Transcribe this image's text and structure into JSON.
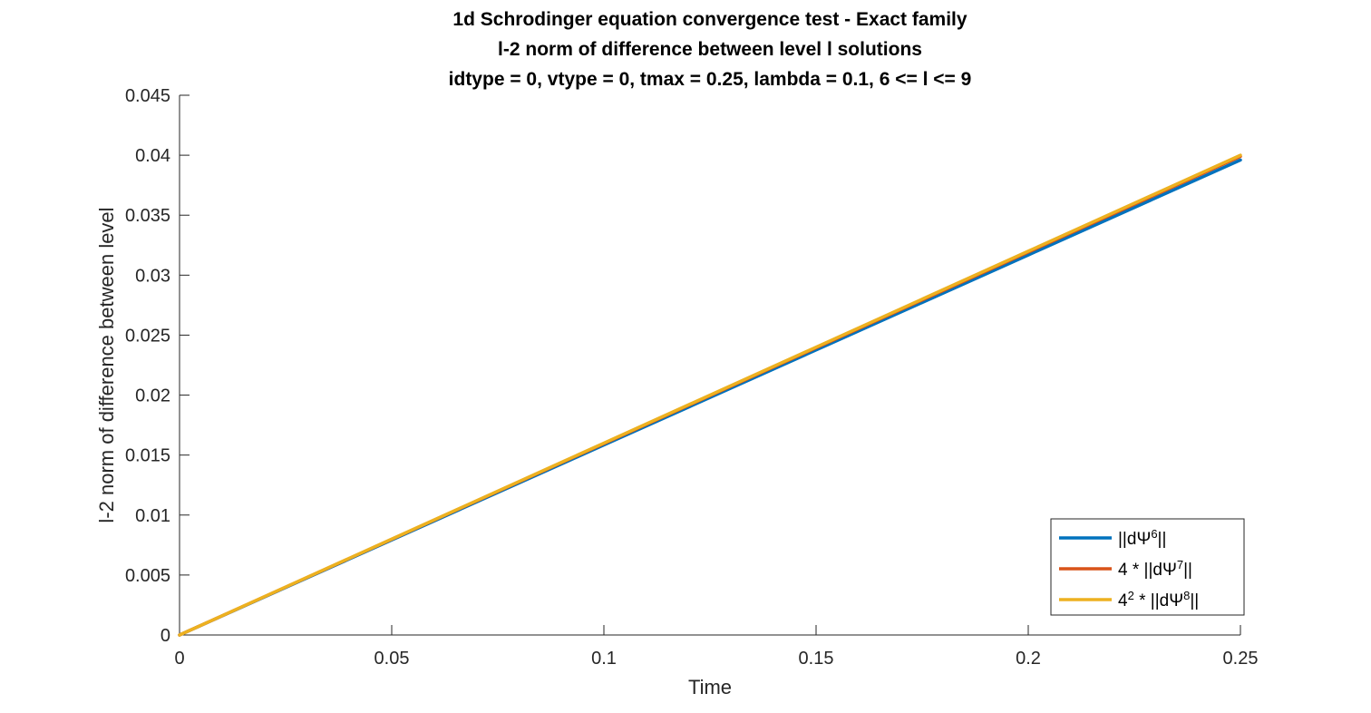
{
  "chart_data": {
    "type": "line",
    "title": [
      "1d Schrodinger equation convergence test - Exact family",
      "l-2 norm of difference between level l solutions",
      "idtype = 0, vtype = 0, tmax = 0.25, lambda = 0.1, 6 <= l <= 9"
    ],
    "xlabel": "Time",
    "ylabel": "l-2 norm of difference between level",
    "xlim": [
      0,
      0.25
    ],
    "ylim": [
      0,
      0.045
    ],
    "xticks": [
      0,
      0.05,
      0.1,
      0.15,
      0.2,
      0.25
    ],
    "xtick_labels": [
      "0",
      "0.05",
      "0.1",
      "0.15",
      "0.2",
      "0.25"
    ],
    "yticks": [
      0,
      0.005,
      0.01,
      0.015,
      0.02,
      0.025,
      0.03,
      0.035,
      0.04,
      0.045
    ],
    "ytick_labels": [
      "0",
      "0.005",
      "0.01",
      "0.015",
      "0.02",
      "0.025",
      "0.03",
      "0.035",
      "0.04",
      "0.045"
    ],
    "grid": false,
    "legend_position": "bottom-right",
    "x": [
      0,
      0.05,
      0.1,
      0.15,
      0.2,
      0.25
    ],
    "series": [
      {
        "name": "||dΨ6||",
        "legend_parts": {
          "pre": "",
          "base": "||dΨ",
          "sup": "6",
          "post": "||"
        },
        "color": "#0072BD",
        "values": [
          0,
          0.00792,
          0.01584,
          0.02376,
          0.03168,
          0.0396
        ]
      },
      {
        "name": "4 * ||dΨ7||",
        "legend_parts": {
          "pre": "4 * ",
          "base": "||dΨ",
          "sup": "7",
          "post": "||"
        },
        "color": "#D95319",
        "values": [
          0,
          0.00798,
          0.01596,
          0.02394,
          0.03192,
          0.0399
        ]
      },
      {
        "name": "4^2 * ||dΨ8||",
        "legend_parts": {
          "pre": "4",
          "pre_sup": "2",
          "pre_post": " * ",
          "base": "||dΨ",
          "sup": "8",
          "post": "||"
        },
        "color": "#EDB120",
        "values": [
          0,
          0.008,
          0.016,
          0.024,
          0.032,
          0.04
        ]
      }
    ]
  }
}
